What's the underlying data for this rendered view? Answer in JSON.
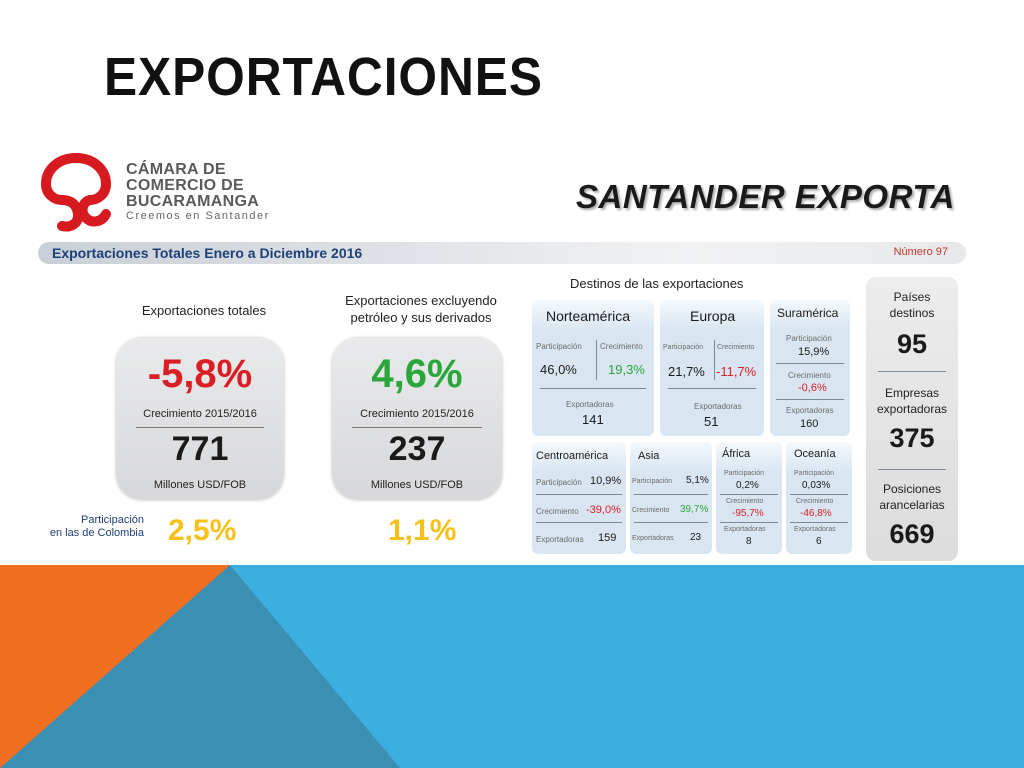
{
  "slide": {
    "title": "EXPORTACIONES",
    "colors": {
      "orange": "#f26f21",
      "teal": "#3a8fb2",
      "blue": "#3bb0e0"
    }
  },
  "header": {
    "org_line1": "CÁMARA DE",
    "org_line2": "COMERCIO DE",
    "org_line3": "BUCARAMANGA",
    "org_tagline": "Creemos en Santander",
    "brand": "SANTANDER EXPORTA",
    "bar_title": "Exportaciones Totales Enero a Diciembre 2016",
    "number_label": "Número 97"
  },
  "totals": {
    "label": "Exportaciones totales",
    "growth": "-5,8%",
    "growth_label": "Crecimiento 2015/2016",
    "amount": "771",
    "unit": "Millones USD/FOB",
    "share": "2,5%"
  },
  "excluding_oil": {
    "label_line1": "Exportaciones excluyendo",
    "label_line2": "petróleo y sus derivados",
    "growth": "4,6%",
    "growth_label": "Crecimiento 2015/2016",
    "amount": "237",
    "unit": "Millones USD/FOB",
    "share": "1,1%"
  },
  "share_label_line1": "Participación",
  "share_label_line2": "en las de Colombia",
  "destinations": {
    "title": "Destinos de las exportaciones",
    "participacion": "Participación",
    "crecimiento": "Crecimiento",
    "exportadoras": "Exportadoras",
    "regions": {
      "norteamerica": {
        "name": "Norteamérica",
        "share": "46,0%",
        "growth": "19,3%",
        "exporters": "141"
      },
      "europa": {
        "name": "Europa",
        "share": "21,7%",
        "growth": "-11,7%",
        "exporters": "51"
      },
      "suramerica": {
        "name": "Suramérica",
        "share": "15,9%",
        "growth": "-0,6%",
        "exporters": "160"
      },
      "centroamerica": {
        "name": "Centroamérica",
        "share": "10,9%",
        "growth": "-39,0%",
        "exporters": "159"
      },
      "asia": {
        "name": "Asia",
        "share": "5,1%",
        "growth": "39,7%",
        "exporters": "23"
      },
      "africa": {
        "name": "África",
        "share": "0,2%",
        "growth": "-95,7%",
        "exporters": "8"
      },
      "oceania": {
        "name": "Oceanía",
        "share": "0,03%",
        "growth": "-46,8%",
        "exporters": "6"
      }
    }
  },
  "summary": {
    "countries_label_line1": "Países",
    "countries_label_line2": "destinos",
    "countries": "95",
    "companies_label_line1": "Empresas",
    "companies_label_line2": "exportadoras",
    "companies": "375",
    "tariffs_label_line1": "Posiciones",
    "tariffs_label_line2": "arancelarias",
    "tariffs": "669"
  }
}
